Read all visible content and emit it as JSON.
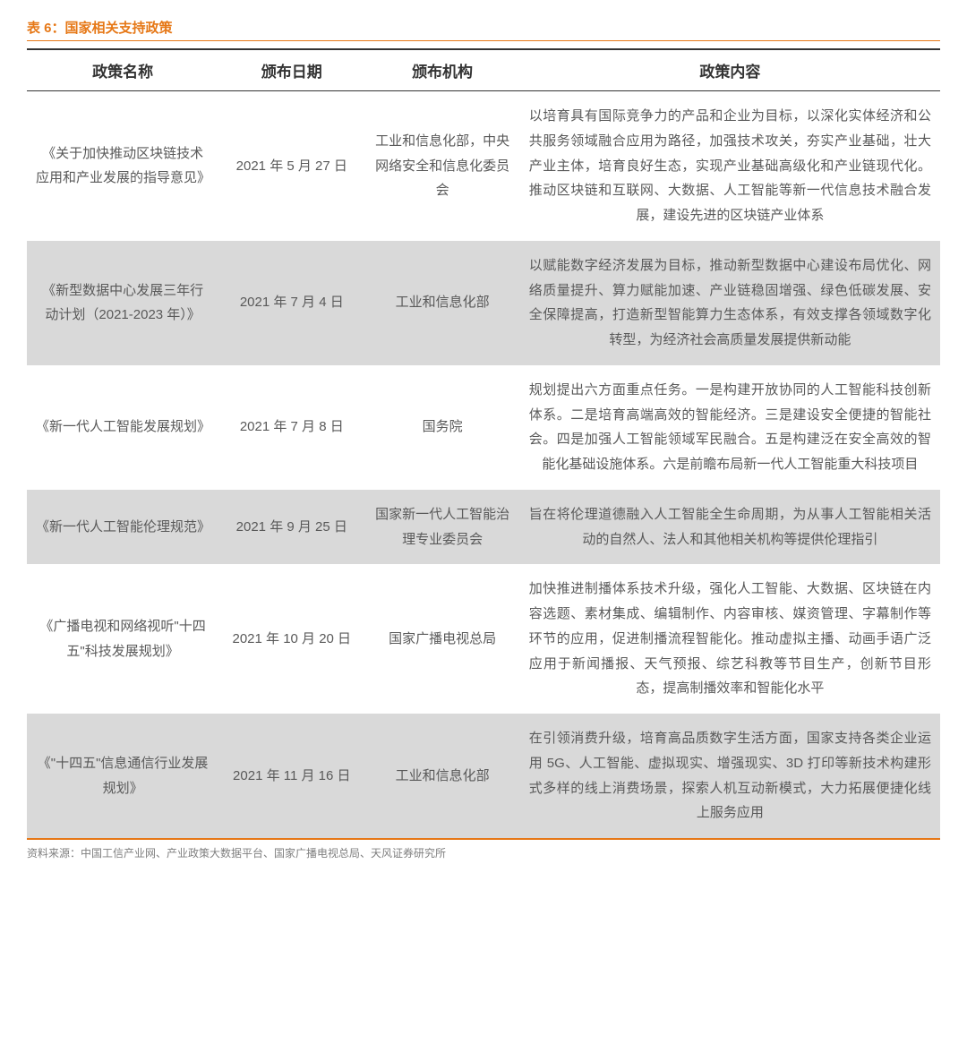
{
  "table": {
    "title": "表 6：国家相关支持政策",
    "columns": [
      "政策名称",
      "颁布日期",
      "颁布机构",
      "政策内容"
    ],
    "col_widths_pct": [
      21,
      16,
      17,
      46
    ],
    "header_fontsize": 17,
    "header_font_weight": "bold",
    "cell_fontsize": 15,
    "line_height": 1.85,
    "title_color": "#e67817",
    "title_border_color": "#e67817",
    "header_border_color": "#333333",
    "text_color": "#595959",
    "alt_row_bg": "#d9d9d9",
    "plain_row_bg": "#ffffff",
    "bottom_border_color": "#e67817",
    "rows": [
      {
        "name": "《关于加快推动区块链技术应用和产业发展的指导意见》",
        "date": "2021 年 5 月 27 日",
        "org": "工业和信息化部，中央网络安全和信息化委员会",
        "content": "以培育具有国际竞争力的产品和企业为目标，以深化实体经济和公共服务领域融合应用为路径，加强技术攻关，夯实产业基础，壮大产业主体，培育良好生态，实现产业基础高级化和产业链现代化。推动区块链和互联网、大数据、人工智能等新一代信息技术融合发展，建设先进的区块链产业体系",
        "alt": false
      },
      {
        "name": "《新型数据中心发展三年行动计划（2021-2023 年）》",
        "date": "2021 年 7 月 4 日",
        "org": "工业和信息化部",
        "content": "以赋能数字经济发展为目标，推动新型数据中心建设布局优化、网络质量提升、算力赋能加速、产业链稳固增强、绿色低碳发展、安全保障提高，打造新型智能算力生态体系，有效支撑各领域数字化转型，为经济社会高质量发展提供新动能",
        "alt": true
      },
      {
        "name": "《新一代人工智能发展规划》",
        "date": "2021 年 7 月 8 日",
        "org": "国务院",
        "content": "规划提出六方面重点任务。一是构建开放协同的人工智能科技创新体系。二是培育高端高效的智能经济。三是建设安全便捷的智能社会。四是加强人工智能领域军民融合。五是构建泛在安全高效的智能化基础设施体系。六是前瞻布局新一代人工智能重大科技项目",
        "alt": false
      },
      {
        "name": "《新一代人工智能伦理规范》",
        "date": "2021 年 9 月 25 日",
        "org": "国家新一代人工智能治理专业委员会",
        "content": "旨在将伦理道德融入人工智能全生命周期，为从事人工智能相关活动的自然人、法人和其他相关机构等提供伦理指引",
        "alt": true
      },
      {
        "name": "《广播电视和网络视听\"十四五\"科技发展规划》",
        "date": "2021 年 10 月 20 日",
        "org": "国家广播电视总局",
        "content": "加快推进制播体系技术升级，强化人工智能、大数据、区块链在内容选题、素材集成、编辑制作、内容审核、媒资管理、字幕制作等环节的应用，促进制播流程智能化。推动虚拟主播、动画手语广泛应用于新闻播报、天气预报、综艺科教等节目生产，创新节目形态，提高制播效率和智能化水平",
        "alt": false
      },
      {
        "name": "《\"十四五\"信息通信行业发展规划》",
        "date": "2021 年 11 月 16 日",
        "org": "工业和信息化部",
        "content": "在引领消费升级，培育高品质数字生活方面，国家支持各类企业运用 5G、人工智能、虚拟现实、增强现实、3D 打印等新技术构建形式多样的线上消费场景，探索人机互动新模式，大力拓展便捷化线上服务应用",
        "alt": true
      }
    ]
  },
  "source_note": "资料来源：中国工信产业网、产业政策大数据平台、国家广播电视总局、天风证券研究所",
  "source_note_color": "#7f7f7f",
  "source_note_fontsize": 12
}
